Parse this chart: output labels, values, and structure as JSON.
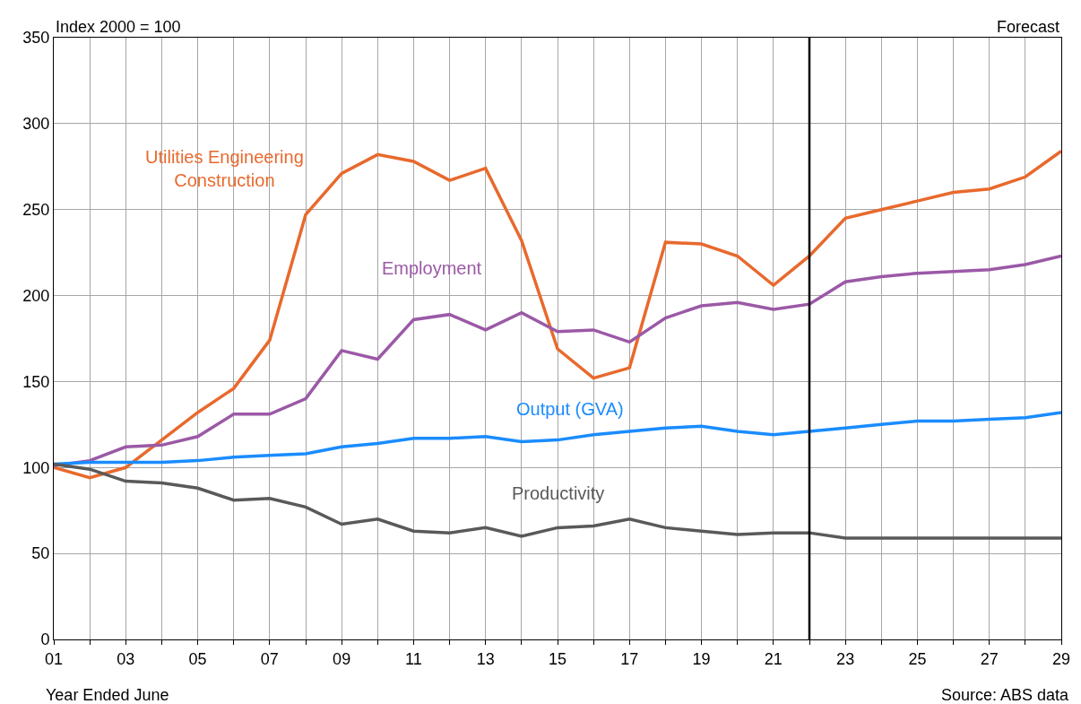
{
  "chart_data": {
    "type": "line",
    "xlabel": "Year Ended June",
    "ylabel": "Index 2000 = 100",
    "x": [
      1,
      2,
      3,
      4,
      5,
      6,
      7,
      8,
      9,
      10,
      11,
      12,
      13,
      14,
      15,
      16,
      17,
      18,
      19,
      20,
      21,
      22,
      23,
      24,
      25,
      26,
      27,
      28,
      29
    ],
    "xlim": [
      1,
      29
    ],
    "xticks": [
      {
        "value": 1,
        "label": "01"
      },
      {
        "value": 2,
        "label": null
      },
      {
        "value": 3,
        "label": "03"
      },
      {
        "value": 4,
        "label": null
      },
      {
        "value": 5,
        "label": "05"
      },
      {
        "value": 6,
        "label": null
      },
      {
        "value": 7,
        "label": "07"
      },
      {
        "value": 8,
        "label": null
      },
      {
        "value": 9,
        "label": "09"
      },
      {
        "value": 10,
        "label": null
      },
      {
        "value": 11,
        "label": "11"
      },
      {
        "value": 12,
        "label": null
      },
      {
        "value": 13,
        "label": "13"
      },
      {
        "value": 14,
        "label": null
      },
      {
        "value": 15,
        "label": "15"
      },
      {
        "value": 16,
        "label": null
      },
      {
        "value": 17,
        "label": "17"
      },
      {
        "value": 18,
        "label": null
      },
      {
        "value": 19,
        "label": "19"
      },
      {
        "value": 20,
        "label": null
      },
      {
        "value": 21,
        "label": "21"
      },
      {
        "value": 22,
        "label": null
      },
      {
        "value": 23,
        "label": "23"
      },
      {
        "value": 24,
        "label": null
      },
      {
        "value": 25,
        "label": "25"
      },
      {
        "value": 26,
        "label": null
      },
      {
        "value": 27,
        "label": "27"
      },
      {
        "value": 28,
        "label": null
      },
      {
        "value": 29,
        "label": "29"
      }
    ],
    "ylim": [
      0,
      350
    ],
    "yticks": [
      0,
      50,
      100,
      150,
      200,
      250,
      300,
      350
    ],
    "grid": true,
    "legend": false,
    "series": [
      {
        "name": "Utilities Engineering Construction",
        "color": "#e8692d",
        "values": [
          100,
          94,
          100,
          116,
          132,
          146,
          174,
          247,
          271,
          282,
          278,
          267,
          274,
          232,
          169,
          152,
          158,
          231,
          230,
          223,
          206,
          223,
          245,
          250,
          255,
          260,
          262,
          269,
          284
        ]
      },
      {
        "name": "Employment",
        "color": "#9b59a6",
        "values": [
          101,
          104,
          112,
          113,
          118,
          131,
          131,
          140,
          168,
          163,
          186,
          189,
          180,
          190,
          179,
          180,
          173,
          187,
          194,
          196,
          192,
          195,
          208,
          211,
          213,
          214,
          215,
          218,
          223
        ]
      },
      {
        "name": "Output (GVA)",
        "color": "#1a8cff",
        "values": [
          102,
          103,
          103,
          103,
          104,
          106,
          107,
          108,
          112,
          114,
          117,
          117,
          118,
          115,
          116,
          119,
          121,
          123,
          124,
          121,
          119,
          121,
          123,
          125,
          127,
          127,
          128,
          129,
          132
        ]
      },
      {
        "name": "Productivity",
        "color": "#595959",
        "values": [
          102,
          99,
          92,
          91,
          88,
          81,
          82,
          77,
          67,
          70,
          63,
          62,
          65,
          60,
          65,
          66,
          70,
          65,
          63,
          61,
          62,
          62,
          59,
          59,
          59,
          59,
          59,
          59,
          59
        ]
      }
    ],
    "ref_lines": [
      {
        "axis": "x",
        "value": 22,
        "label": "Forecast",
        "color": "#000000"
      }
    ],
    "annotations": [
      "Source: ABS data"
    ]
  }
}
